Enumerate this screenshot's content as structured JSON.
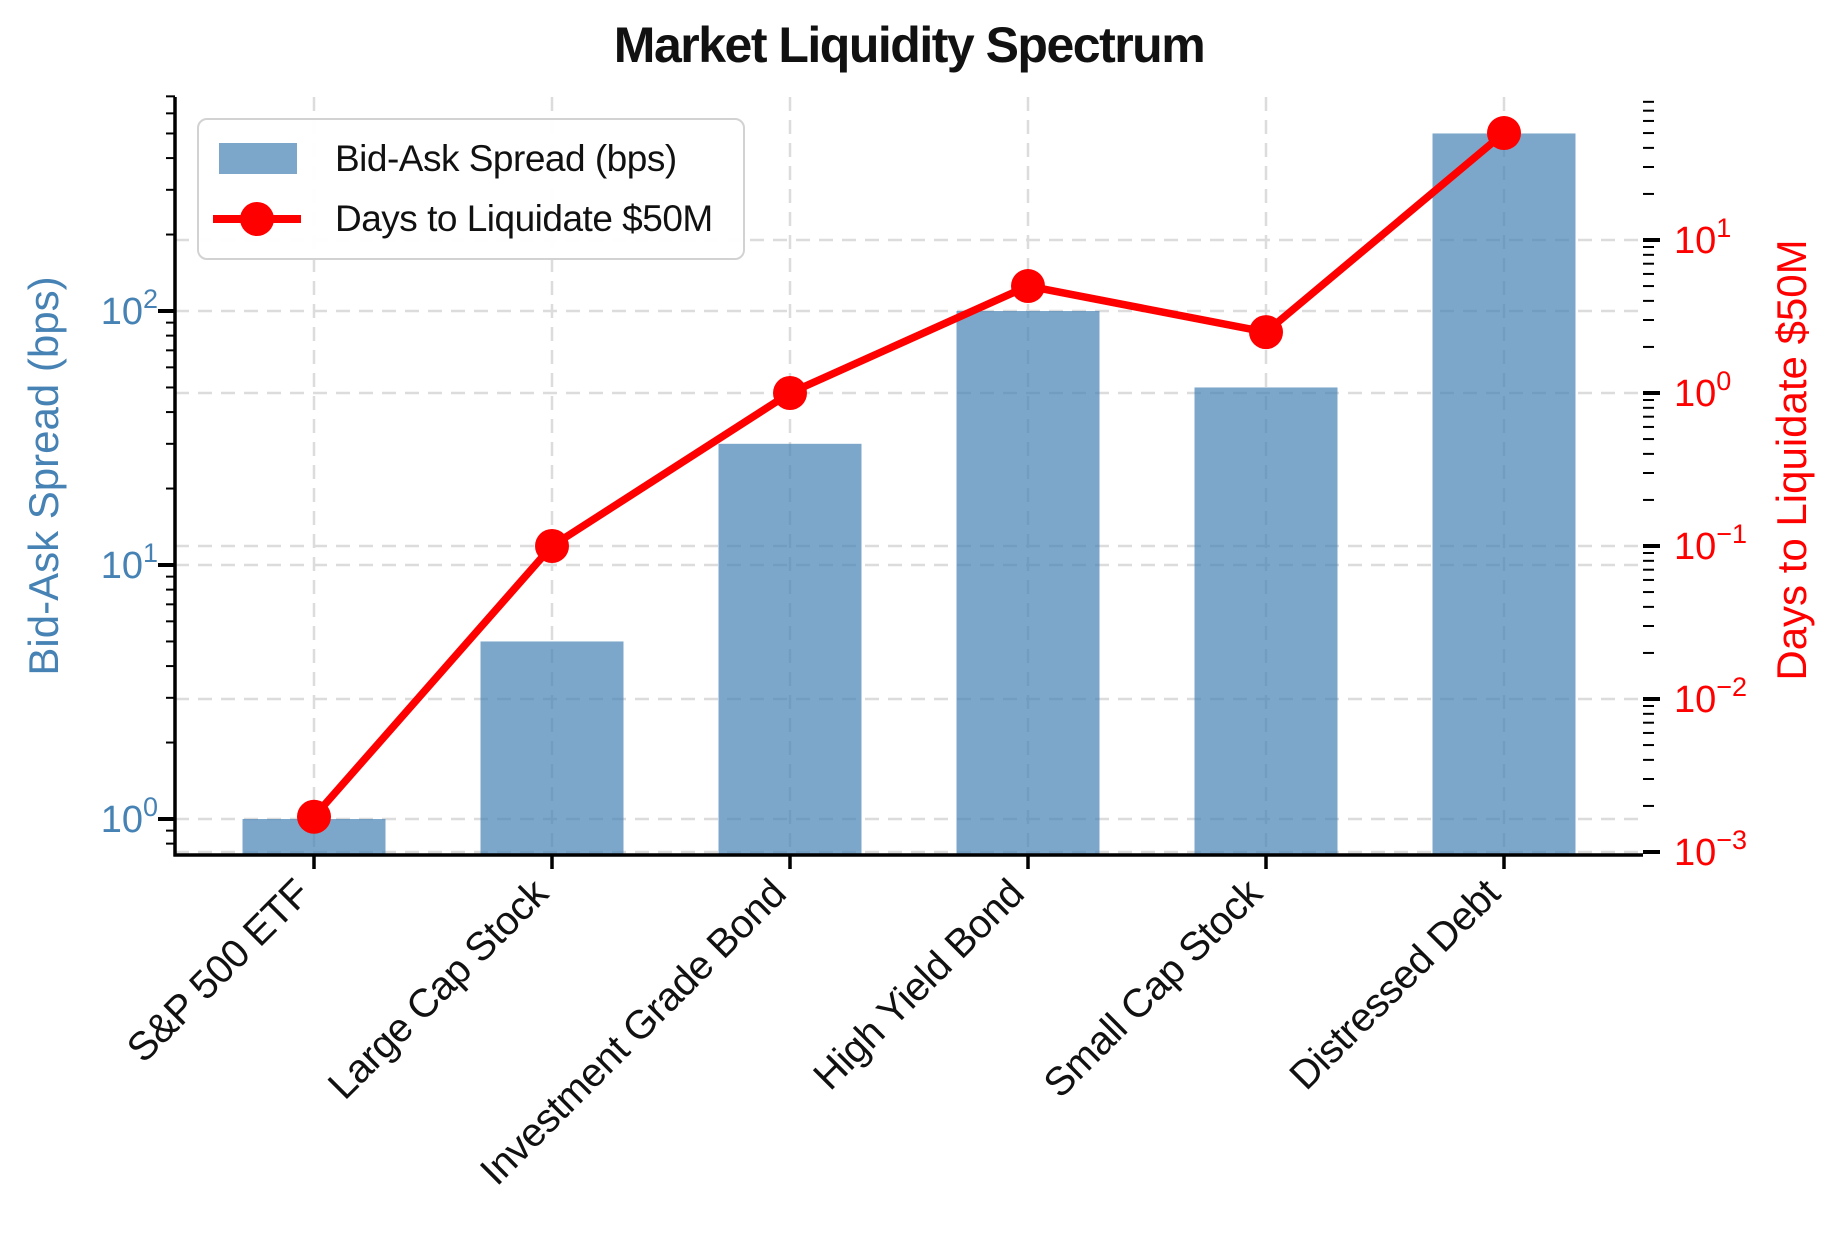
{
  "title": "Market Liquidity Spectrum",
  "legend": {
    "items": [
      {
        "label": "Bid-Ask Spread (bps)",
        "marker": "bar-swatch"
      },
      {
        "label": "Days to Liquidate $50M",
        "marker": "line-with-dot"
      }
    ]
  },
  "axes": {
    "left": {
      "label": "Bid-Ask Spread (bps)",
      "color": "#4682b4",
      "scale": "log",
      "tick_exponents": [
        0,
        1,
        2
      ]
    },
    "right": {
      "label": "Days to Liquidate $50M",
      "color": "#ff0000",
      "scale": "log",
      "tick_exponents": [
        1,
        0,
        -1,
        -2,
        -3
      ]
    }
  },
  "chart_data": {
    "type": "bar",
    "categories": [
      "S&P 500 ETF",
      "Large Cap Stock",
      "Investment Grade Bond",
      "High Yield Bond",
      "Small Cap Stock",
      "Distressed Debt"
    ],
    "series": [
      {
        "name": "Bid-Ask Spread (bps)",
        "type": "bar",
        "axis": "left",
        "color": "#4682b4",
        "alpha": 0.7,
        "values": [
          1,
          5,
          30,
          100,
          50,
          500
        ]
      },
      {
        "name": "Days to Liquidate $50M",
        "type": "line",
        "axis": "right",
        "color": "#ff0000",
        "values": [
          0.0017,
          0.1,
          1,
          5,
          2.5,
          50
        ]
      }
    ],
    "title": "Market Liquidity Spectrum",
    "xlabel": "",
    "ylabel_left": "Bid-Ask Spread (bps)",
    "ylabel_right": "Days to Liquidate $50M",
    "left_ylim": [
      0.72,
      700
    ],
    "right_ylim": [
      0.00095,
      86
    ],
    "grid": true,
    "legend_position": "upper left"
  },
  "colors": {
    "bar_fill": "rgba(70,130,180,0.7)",
    "line": "#ff0000",
    "grid": "#dcdcdc",
    "spine": "#000000",
    "left_tick_label": "#4682b4",
    "right_tick_label": "#ff0000"
  }
}
